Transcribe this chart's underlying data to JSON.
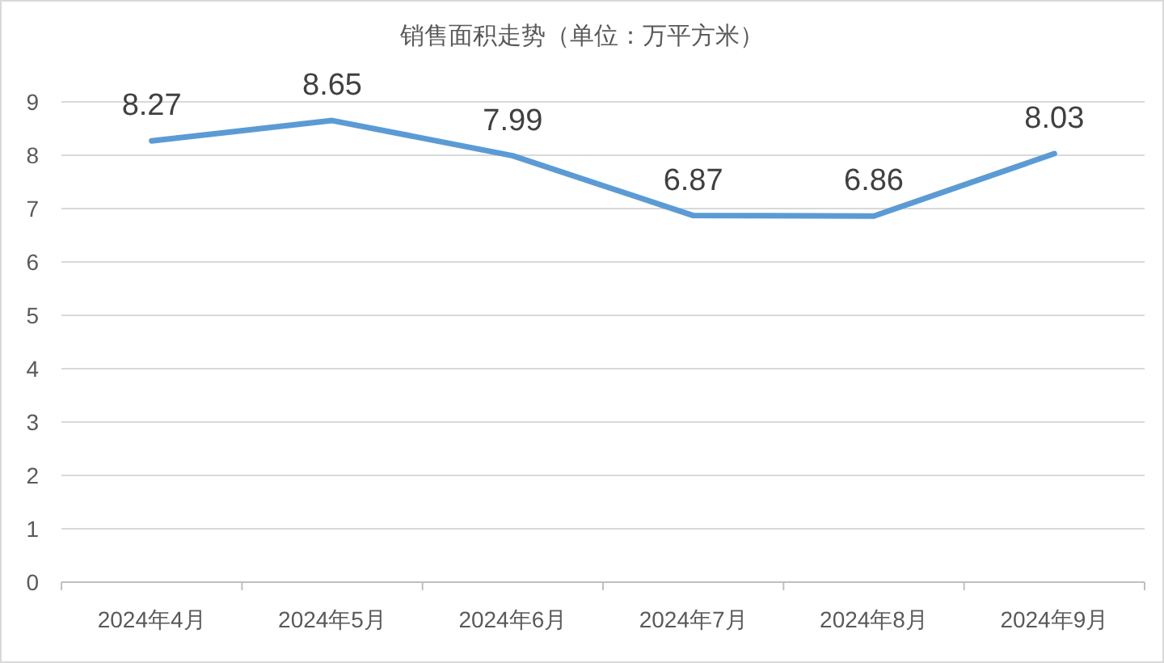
{
  "chart_data": {
    "type": "line",
    "title": "销售面积走势（单位：万平方米）",
    "categories": [
      "2024年4月",
      "2024年5月",
      "2024年6月",
      "2024年7月",
      "2024年8月",
      "2024年9月"
    ],
    "values": [
      8.27,
      8.65,
      7.99,
      6.87,
      6.86,
      8.03
    ],
    "color": "#5b9bd5",
    "ylim": [
      0,
      9
    ],
    "yticks": [
      0,
      1,
      2,
      3,
      4,
      5,
      6,
      7,
      8,
      9
    ],
    "grid": "y",
    "data_labels": true
  }
}
